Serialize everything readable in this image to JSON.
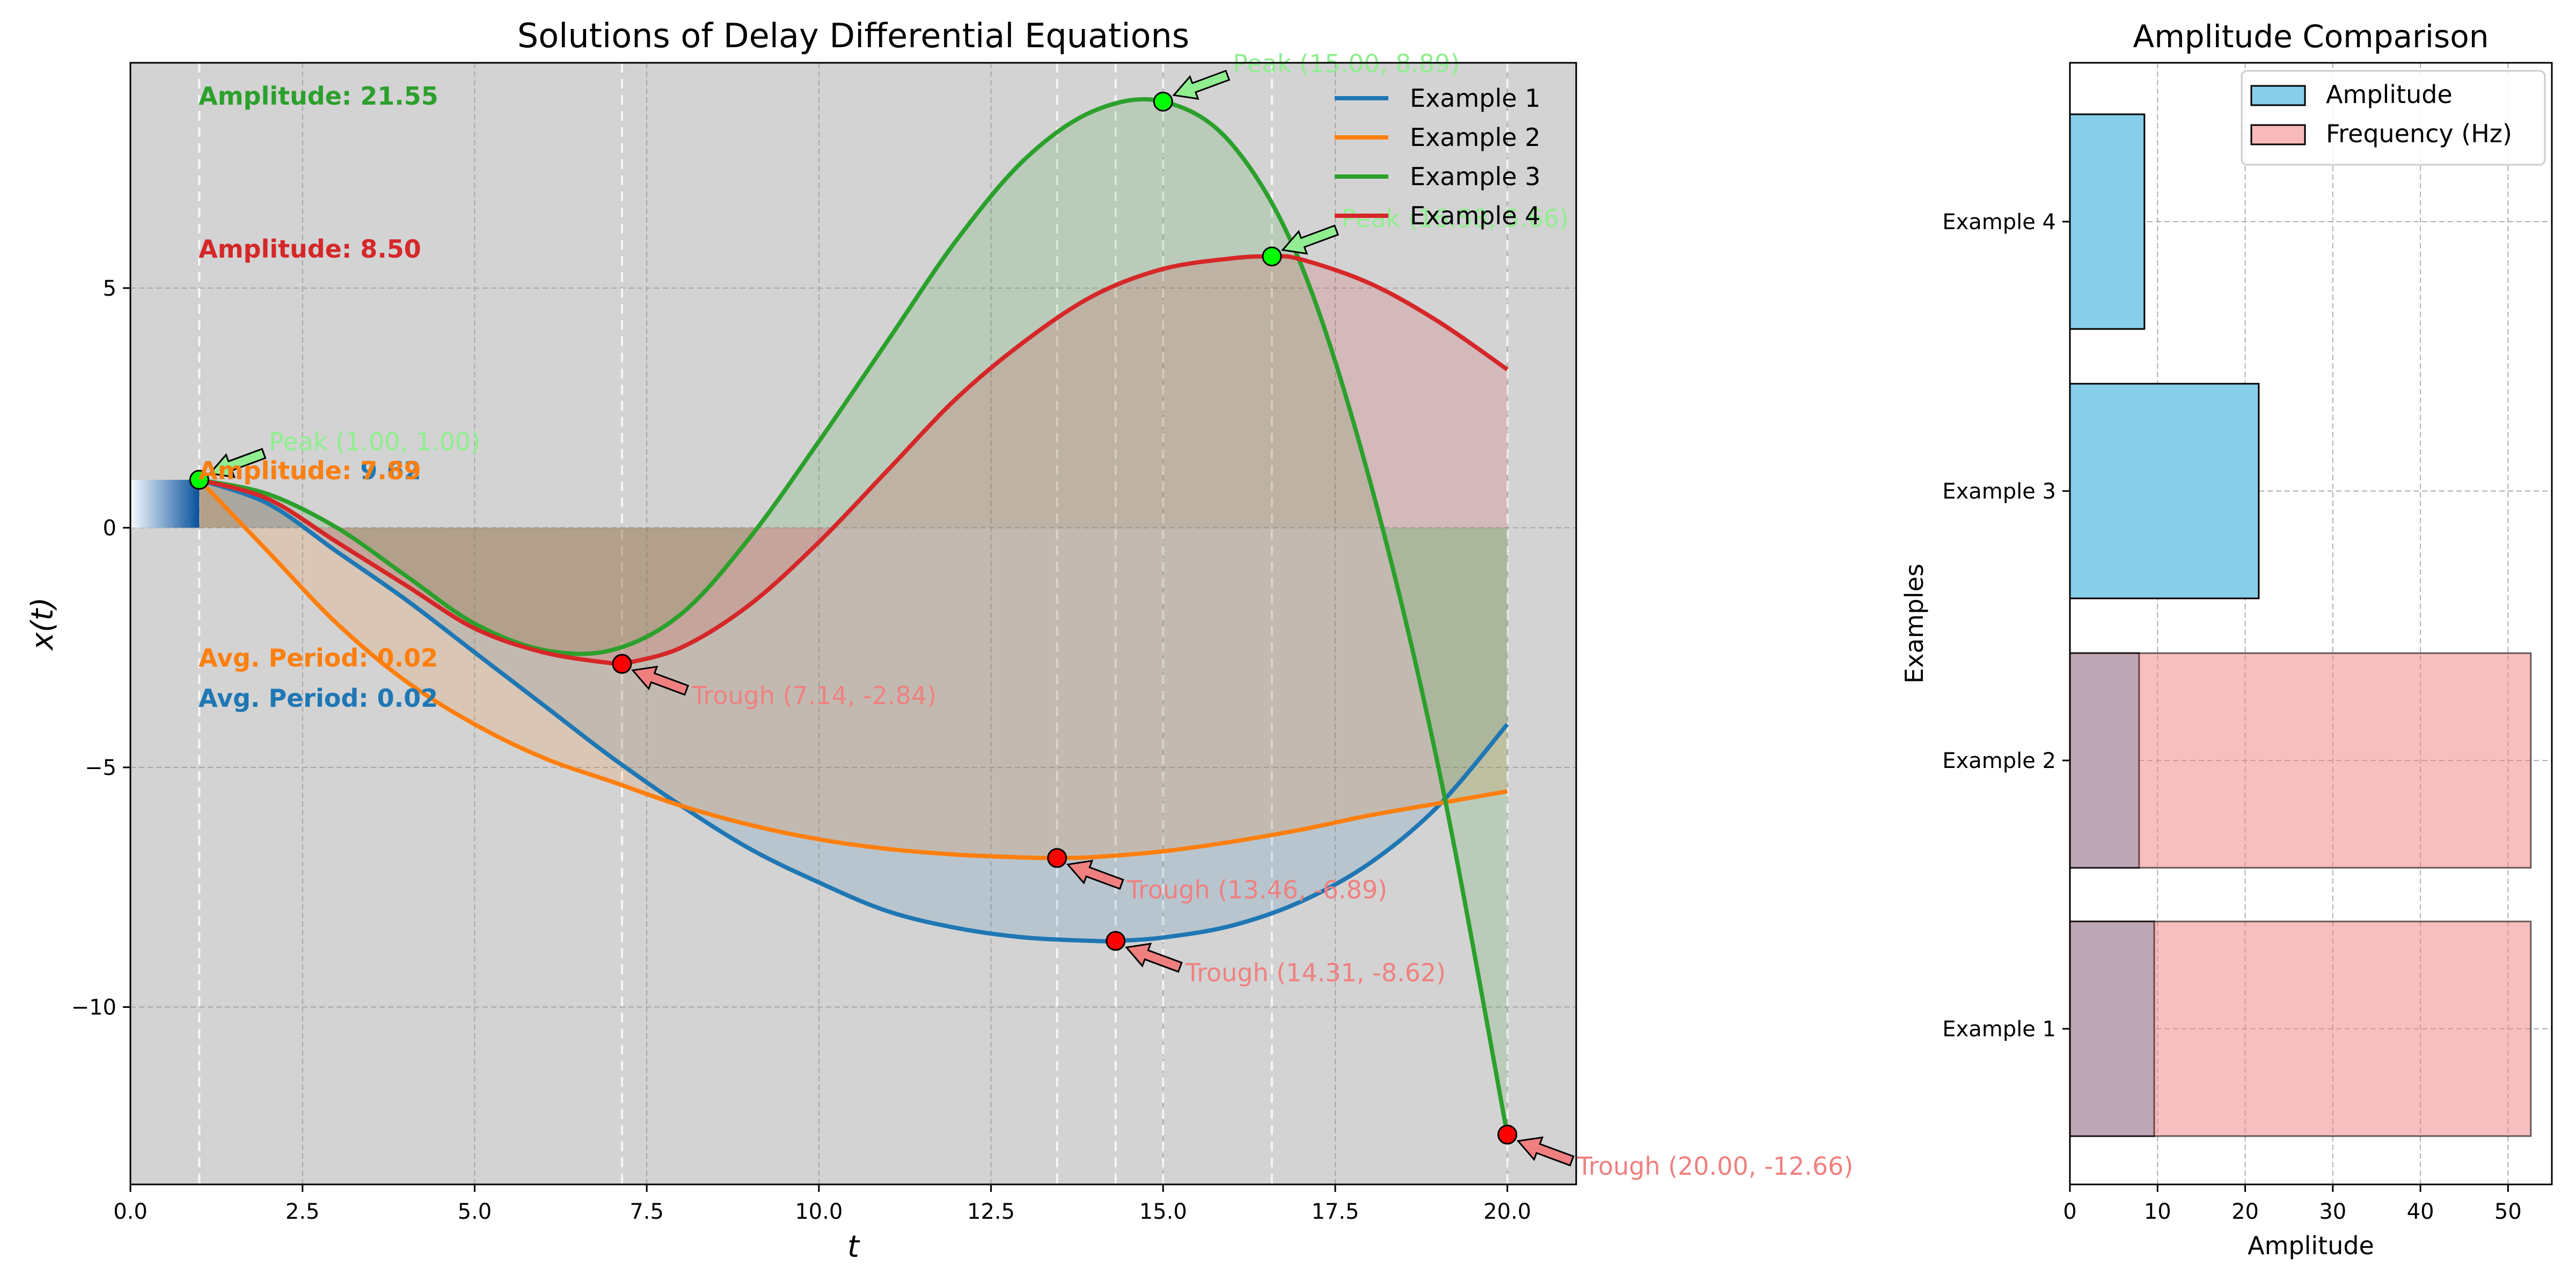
{
  "chart_data": [
    {
      "type": "line",
      "title": "Solutions of Delay Differential Equations",
      "xlabel": "t",
      "ylabel": "x(t)",
      "xlim": [
        0,
        21
      ],
      "ylim": [
        -13.7,
        9.7
      ],
      "xticks": [
        0,
        2.5,
        5,
        7.5,
        10,
        12.5,
        15,
        17.5,
        20
      ],
      "xtick_labels": [
        "0.0",
        "2.5",
        "5.0",
        "7.5",
        "10.0",
        "12.5",
        "15.0",
        "17.5",
        "20.0"
      ],
      "yticks": [
        5,
        0,
        -5,
        -10
      ],
      "ytick_labels": [
        "5",
        "0",
        "−5",
        "−10"
      ],
      "grid": true,
      "legend_position": "top-right",
      "series": [
        {
          "name": "Example 1",
          "color": "#1f77b4",
          "x": [
            1,
            2,
            3,
            4,
            5,
            6,
            7,
            8,
            9,
            10,
            11,
            12,
            13,
            14,
            14.31,
            15,
            16,
            17,
            18,
            19,
            20
          ],
          "y": [
            1.0,
            0.5,
            -0.5,
            -1.5,
            -2.6,
            -3.7,
            -4.8,
            -5.8,
            -6.7,
            -7.4,
            -8.0,
            -8.35,
            -8.55,
            -8.62,
            -8.62,
            -8.55,
            -8.3,
            -7.8,
            -7.0,
            -5.8,
            -4.1
          ]
        },
        {
          "name": "Example 2",
          "color": "#ff7f0e",
          "x": [
            1,
            2,
            3,
            4,
            5,
            6,
            7,
            8,
            9,
            10,
            11,
            12,
            13,
            13.46,
            14,
            15,
            16,
            17,
            18,
            19,
            20
          ],
          "y": [
            1.0,
            -0.5,
            -2.0,
            -3.2,
            -4.1,
            -4.8,
            -5.3,
            -5.8,
            -6.2,
            -6.5,
            -6.7,
            -6.82,
            -6.88,
            -6.89,
            -6.87,
            -6.75,
            -6.55,
            -6.3,
            -6.0,
            -5.75,
            -5.5
          ]
        },
        {
          "name": "Example 3",
          "color": "#2ca02c",
          "x": [
            1,
            2,
            3,
            4,
            5,
            6,
            7,
            8,
            9,
            10,
            11,
            12,
            13,
            14,
            15,
            16,
            17,
            18,
            19,
            20
          ],
          "y": [
            1.0,
            0.7,
            0.0,
            -1.0,
            -2.0,
            -2.55,
            -2.55,
            -1.8,
            -0.2,
            1.8,
            3.9,
            6.0,
            7.7,
            8.7,
            8.89,
            8.0,
            5.5,
            1.0,
            -5.0,
            -12.66
          ]
        },
        {
          "name": "Example 4",
          "color": "#d62728",
          "x": [
            1,
            2,
            3,
            4,
            5,
            6,
            7,
            7.14,
            8,
            9,
            10,
            11,
            12,
            13,
            14,
            15,
            16,
            16.58,
            17,
            18,
            19,
            20
          ],
          "y": [
            1.0,
            0.6,
            -0.3,
            -1.2,
            -2.1,
            -2.6,
            -2.83,
            -2.84,
            -2.5,
            -1.6,
            -0.3,
            1.2,
            2.7,
            3.9,
            4.85,
            5.4,
            5.62,
            5.66,
            5.6,
            5.1,
            4.3,
            3.3
          ]
        }
      ],
      "history": {
        "x": [
          0,
          1
        ],
        "y": 1.0,
        "color": "#08519c"
      },
      "vertical_lines": [
        1.0,
        7.14,
        13.46,
        14.31,
        15.0,
        16.58,
        20.0
      ],
      "peaks": [
        {
          "x": 1.0,
          "y": 1.0,
          "label": "Peak (1.00, 1.00)"
        },
        {
          "x": 1.0,
          "y": 1.0,
          "label": "Peak (1.00, 1.00)"
        },
        {
          "x": 15.0,
          "y": 8.89,
          "label": "Peak (15.00, 8.89)"
        },
        {
          "x": 16.58,
          "y": 5.66,
          "label": "Peak (16.58, 5.66)"
        }
      ],
      "troughs": [
        {
          "x": 7.14,
          "y": -2.84,
          "label": "Trough (7.14, -2.84)"
        },
        {
          "x": 13.46,
          "y": -6.89,
          "label": "Trough (13.46, -6.89)"
        },
        {
          "x": 14.31,
          "y": -8.62,
          "label": "Trough (14.31, -8.62)"
        },
        {
          "x": 20.0,
          "y": -12.66,
          "label": "Trough (20.00, -12.66)"
        }
      ],
      "annotations": [
        {
          "text": "Amplitude: 21.55",
          "color": "#2ca02c"
        },
        {
          "text": "Amplitude: 8.50",
          "color": "#d62728"
        },
        {
          "text": "Amplitude: 9.62",
          "color": "#1f77b4"
        },
        {
          "text": "Amplitude: 7.89",
          "color": "#ff7f0e"
        },
        {
          "text": "Avg. Period: 0.02",
          "color": "#ff7f0e"
        },
        {
          "text": "Avg. Period: 0.02",
          "color": "#1f77b4"
        }
      ]
    },
    {
      "type": "bar",
      "orientation": "horizontal",
      "title": "Amplitude Comparison",
      "xlabel": "Amplitude",
      "ylabel": "Examples",
      "categories": [
        "Example 1",
        "Example 2",
        "Example 3",
        "Example 4"
      ],
      "xlim": [
        0,
        55
      ],
      "xticks": [
        0,
        10,
        20,
        30,
        40,
        50
      ],
      "grid": true,
      "legend_position": "top-right",
      "series": [
        {
          "name": "Amplitude",
          "color": "#87ceeb",
          "values": [
            9.62,
            7.89,
            21.55,
            8.5
          ]
        },
        {
          "name": "Frequency (Hz)",
          "color": "#f08080",
          "values": [
            52.6,
            52.6,
            null,
            null
          ]
        }
      ]
    }
  ]
}
